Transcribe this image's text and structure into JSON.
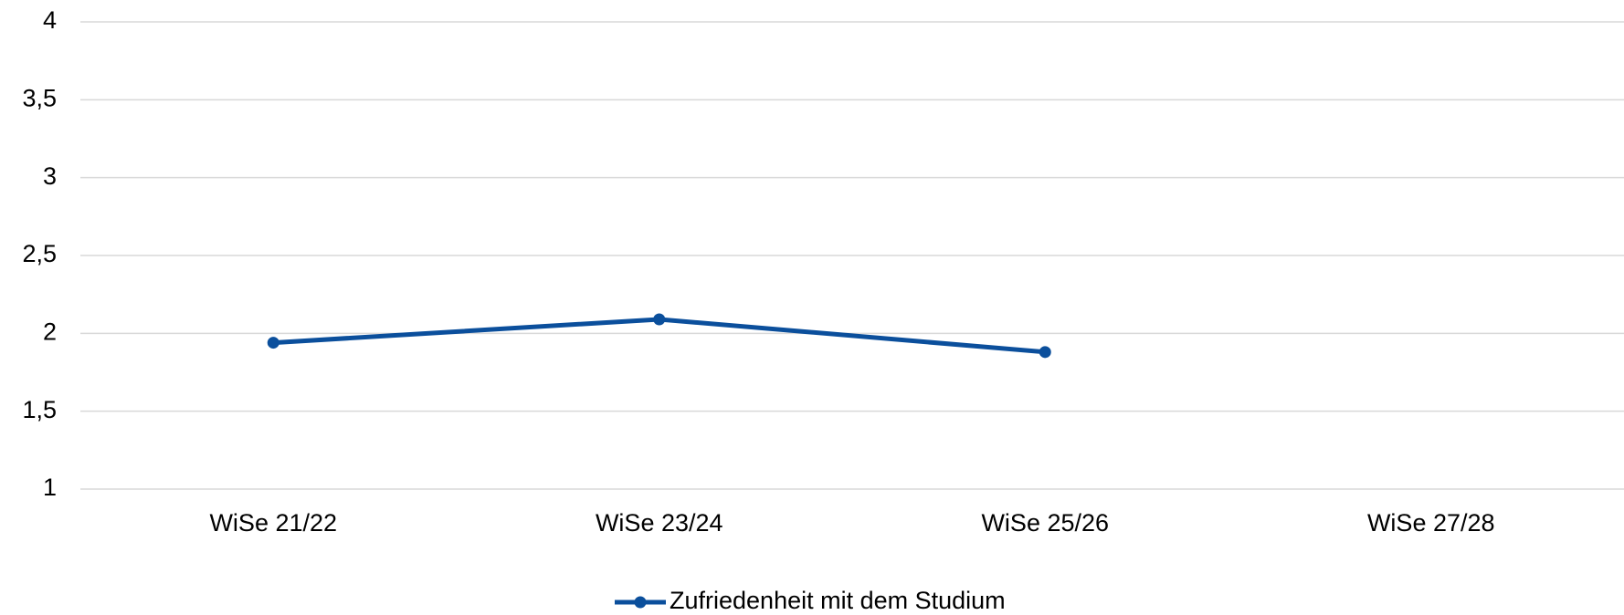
{
  "chart_data": {
    "type": "line",
    "categories": [
      "WiSe 21/22",
      "WiSe 23/24",
      "WiSe 25/26",
      "WiSe 27/28"
    ],
    "series": [
      {
        "name": "Zufriedenheit mit dem Studium",
        "color": "#0b4f9c",
        "values": [
          1.94,
          2.09,
          1.88,
          null
        ]
      }
    ],
    "ylim": [
      1,
      4
    ],
    "yticks": [
      1,
      {
        "value": 1.5,
        "label": "1,5"
      },
      2,
      {
        "value": 2.5,
        "label": "2,5"
      },
      3,
      {
        "value": 3.5,
        "label": "3,5"
      },
      4
    ],
    "grid": true,
    "legend": "bottom"
  }
}
